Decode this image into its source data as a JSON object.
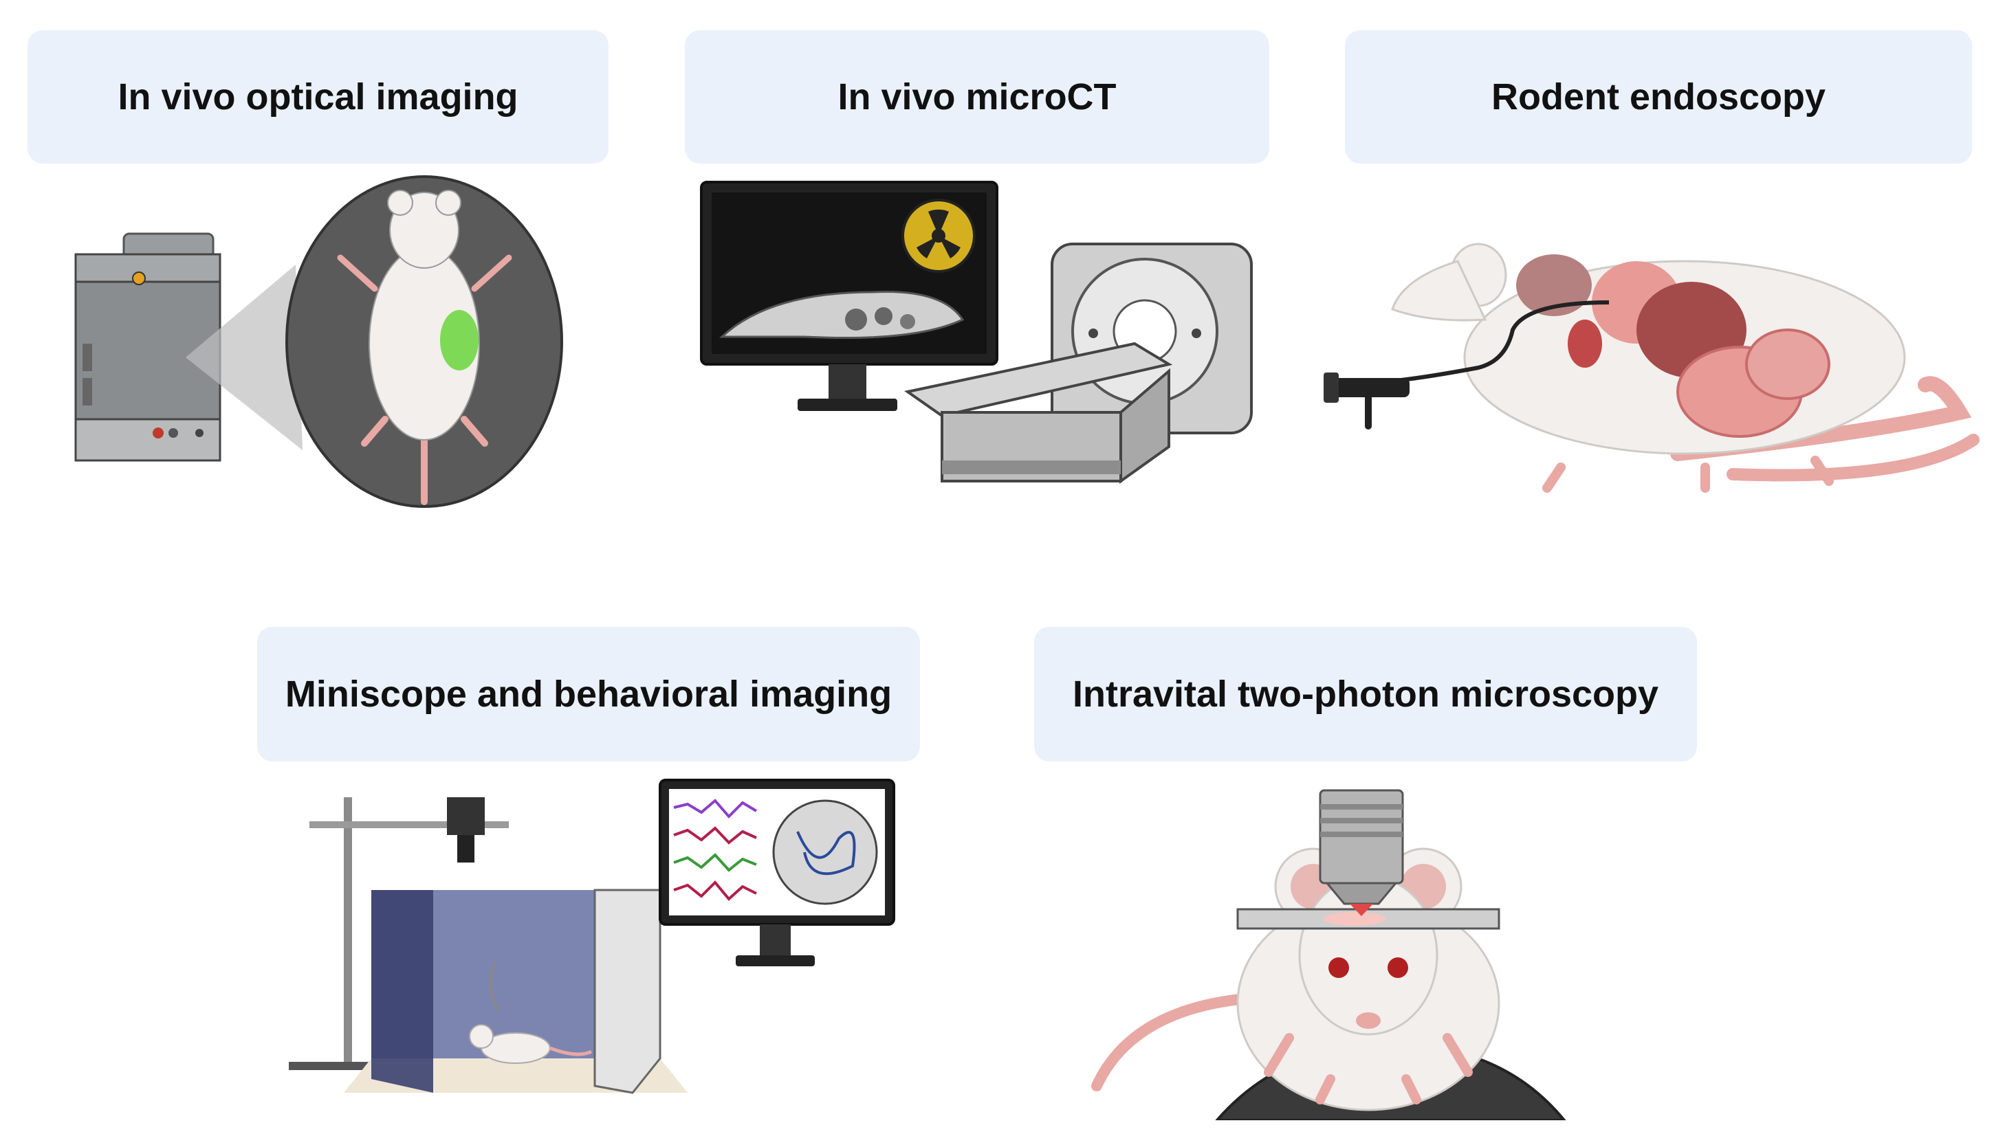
{
  "panels": [
    {
      "title": "In vivo optical imaging"
    },
    {
      "title": "In vivo microCT"
    },
    {
      "title": "Rodent endoscopy"
    },
    {
      "title": "Miniscope and behavioral imaging"
    },
    {
      "title": "Intravital two-photon microscopy"
    }
  ],
  "colors": {
    "title_background": "#eaf1fb",
    "imager_grey": "#8a8d90",
    "signal_green": "#7ed957",
    "radiation_yellow": "#d4b020",
    "mouse_fur": "#f2efec",
    "mouse_pink": "#e8a8a4",
    "organ_red": "#d97b7b",
    "behavior_wall": "#7c85b0",
    "eeg_purple": "#8b3fc9",
    "eeg_green": "#3a9a3a",
    "eeg_red": "#b0204a",
    "microscope_stage": "#3a3a3a"
  },
  "icons": [
    "optical-imager-icon",
    "mouse-supine-icon",
    "ct-monitor-icon",
    "radiation-icon",
    "ct-scanner-icon",
    "endoscope-icon",
    "mouse-anatomy-icon",
    "behavior-rig-icon",
    "eeg-monitor-icon",
    "objective-lens-icon",
    "mouse-on-ball-icon"
  ]
}
